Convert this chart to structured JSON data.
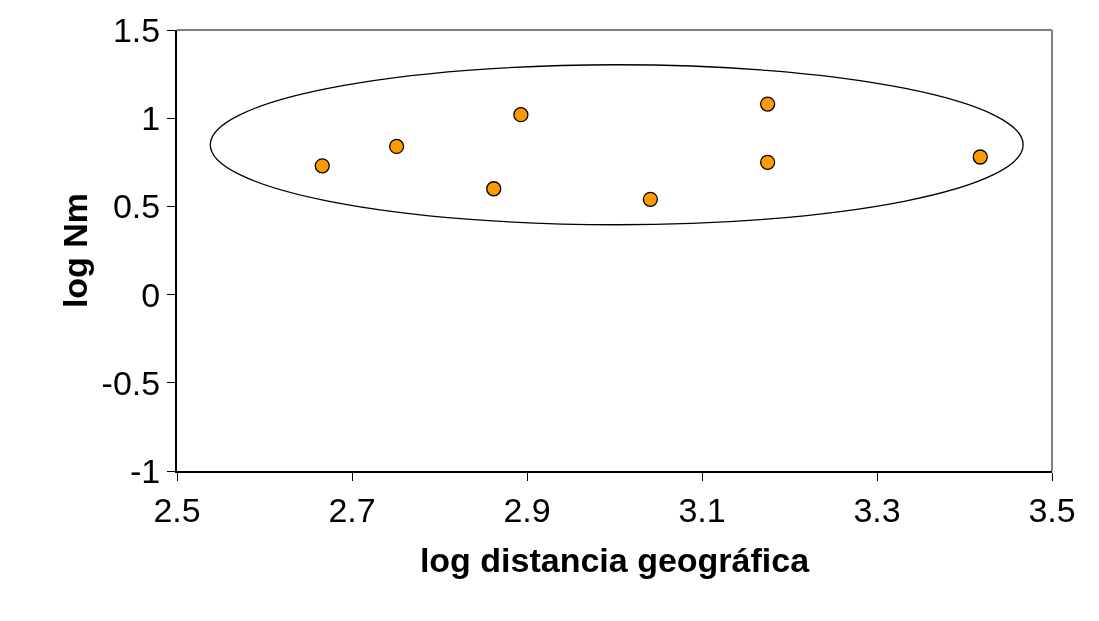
{
  "chart_data": {
    "type": "scatter",
    "xlabel": "log distancia geográfica",
    "ylabel": "log Nm",
    "x": [
      2.666,
      2.751,
      2.862,
      2.893,
      3.041,
      3.175,
      3.175,
      3.418
    ],
    "values": [
      0.73,
      0.84,
      0.6,
      1.02,
      0.54,
      1.08,
      0.75,
      0.78
    ],
    "color": "#ff9900",
    "marker": "circle",
    "grid": false,
    "xlim": [
      2.5,
      3.5
    ],
    "xticks": [
      2.5,
      2.7,
      2.9,
      3.1,
      3.3,
      3.5
    ],
    "ylim": [
      -1,
      1.5
    ],
    "yticks": [
      -1,
      -0.5,
      0,
      0.5,
      1,
      1.5
    ]
  }
}
